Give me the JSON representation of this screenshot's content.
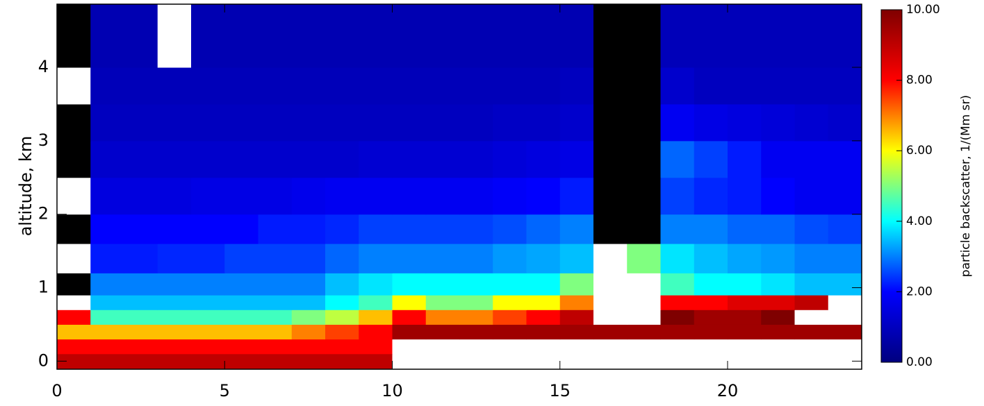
{
  "chart_data": {
    "type": "heatmap",
    "y_label": "altitude, km",
    "colorbar_label": "particle backscatter, 1/(Mm sr)",
    "xbins": [
      0,
      1,
      2,
      3,
      4,
      5,
      6,
      7,
      8,
      9,
      10,
      11,
      12,
      13,
      14,
      15,
      16,
      17,
      18,
      19,
      20,
      21,
      22,
      23,
      24
    ],
    "ybins": [
      -0.11,
      0.1,
      0.3,
      0.5,
      0.7,
      0.9,
      1.2,
      1.6,
      2.0,
      2.5,
      3.0,
      3.5,
      4.0,
      4.86
    ],
    "values": [
      [
        9,
        9,
        9,
        9,
        9,
        9,
        9,
        9,
        9,
        9,
        12,
        12,
        12,
        12,
        12,
        12,
        12,
        12,
        12,
        12,
        12,
        12,
        12,
        12
      ],
      [
        8,
        8,
        8,
        8,
        8,
        8,
        8,
        8,
        8,
        8,
        12,
        12,
        12,
        12,
        12,
        12,
        12,
        12,
        12,
        12,
        12,
        12,
        12,
        12
      ],
      [
        6.5,
        6.5,
        6.5,
        6.5,
        6.5,
        6.5,
        6.5,
        7,
        7.5,
        8,
        9.5,
        9.5,
        9.5,
        9.5,
        9.5,
        9.5,
        9.5,
        9.5,
        9.5,
        9.5,
        9.5,
        9.5,
        9.5,
        9.5
      ],
      [
        8,
        4.5,
        4.5,
        4.5,
        4.5,
        4.5,
        4.5,
        5,
        5.5,
        6.5,
        8,
        7,
        7,
        7.5,
        8,
        9,
        10.5,
        10.5,
        10,
        9.5,
        9.5,
        10,
        10.5,
        10.5
      ],
      [
        12,
        3.5,
        3.5,
        3.5,
        3.5,
        3.5,
        3.5,
        3.5,
        4,
        4.5,
        6,
        5,
        5,
        6,
        6,
        7,
        12,
        12,
        8,
        8,
        8.5,
        8.5,
        9,
        11
      ],
      [
        null,
        3,
        3,
        3,
        3,
        3,
        3,
        3,
        3.5,
        3.8,
        4,
        4,
        4,
        4,
        4,
        5,
        12,
        12,
        4.5,
        4,
        4,
        3.8,
        3.5,
        3.5
      ],
      [
        12,
        2.2,
        2.2,
        2.3,
        2.3,
        2.5,
        2.5,
        2.5,
        2.8,
        3,
        3,
        3,
        3,
        3.2,
        3.3,
        3.5,
        12,
        5,
        3.8,
        3.5,
        3.3,
        3.2,
        3,
        3
      ],
      [
        null,
        2,
        2,
        2,
        2,
        2,
        2.2,
        2.2,
        2.3,
        2.5,
        2.5,
        2.5,
        2.5,
        2.6,
        2.8,
        3,
        null,
        null,
        3,
        3,
        2.8,
        2.8,
        2.6,
        2.5
      ],
      [
        12,
        1.5,
        1.5,
        1.5,
        1.6,
        1.6,
        1.6,
        1.7,
        1.8,
        1.8,
        1.8,
        1.8,
        1.8,
        1.9,
        2,
        2.2,
        null,
        null,
        2.5,
        2.3,
        2.2,
        2,
        1.8,
        1.8
      ],
      [
        null,
        1.2,
        1.2,
        1.2,
        1.2,
        1.2,
        1.2,
        1.2,
        1.2,
        1.3,
        1.3,
        1.3,
        1.3,
        1.4,
        1.5,
        1.6,
        null,
        null,
        2.8,
        2.5,
        2.2,
        1.8,
        1.8,
        1.8
      ],
      [
        null,
        1,
        1,
        1,
        1,
        1,
        1,
        1,
        1,
        1,
        1,
        1,
        1,
        1.1,
        1.1,
        1.2,
        null,
        null,
        1.8,
        1.6,
        1.5,
        1.4,
        1.3,
        1.2
      ],
      [
        12,
        0.9,
        0.9,
        0.9,
        0.9,
        0.9,
        0.9,
        0.9,
        0.9,
        0.9,
        0.9,
        0.9,
        0.9,
        0.9,
        0.9,
        1,
        null,
        null,
        1.2,
        1,
        1,
        1,
        1,
        1
      ],
      [
        null,
        0.8,
        0.8,
        12,
        0.8,
        0.8,
        0.8,
        0.8,
        0.8,
        0.8,
        0.8,
        0.8,
        0.8,
        0.8,
        0.8,
        0.8,
        null,
        null,
        0.9,
        0.9,
        0.9,
        0.9,
        0.9,
        0.9
      ]
    ],
    "xlim": [
      0,
      24
    ],
    "xticks": [
      0,
      5,
      10,
      15,
      20
    ],
    "ylim": [
      -0.11,
      4.86
    ],
    "yticks": [
      0,
      1,
      2,
      3,
      4
    ],
    "clim": [
      0,
      10
    ],
    "cticks": [
      {
        "value": 0,
        "label": "0.00"
      },
      {
        "value": 2,
        "label": "2.00"
      },
      {
        "value": 4,
        "label": "4.00"
      },
      {
        "value": 6,
        "label": "6.00"
      },
      {
        "value": 8,
        "label": "8.00"
      },
      {
        "value": 10,
        "label": "10.00"
      }
    ],
    "colormap": [
      "#00007f",
      "#0000ff",
      "#00ffff",
      "#ffff00",
      "#ff0000",
      "#7f0000"
    ],
    "over_color": "#ffffff",
    "null_color": "#000000"
  }
}
